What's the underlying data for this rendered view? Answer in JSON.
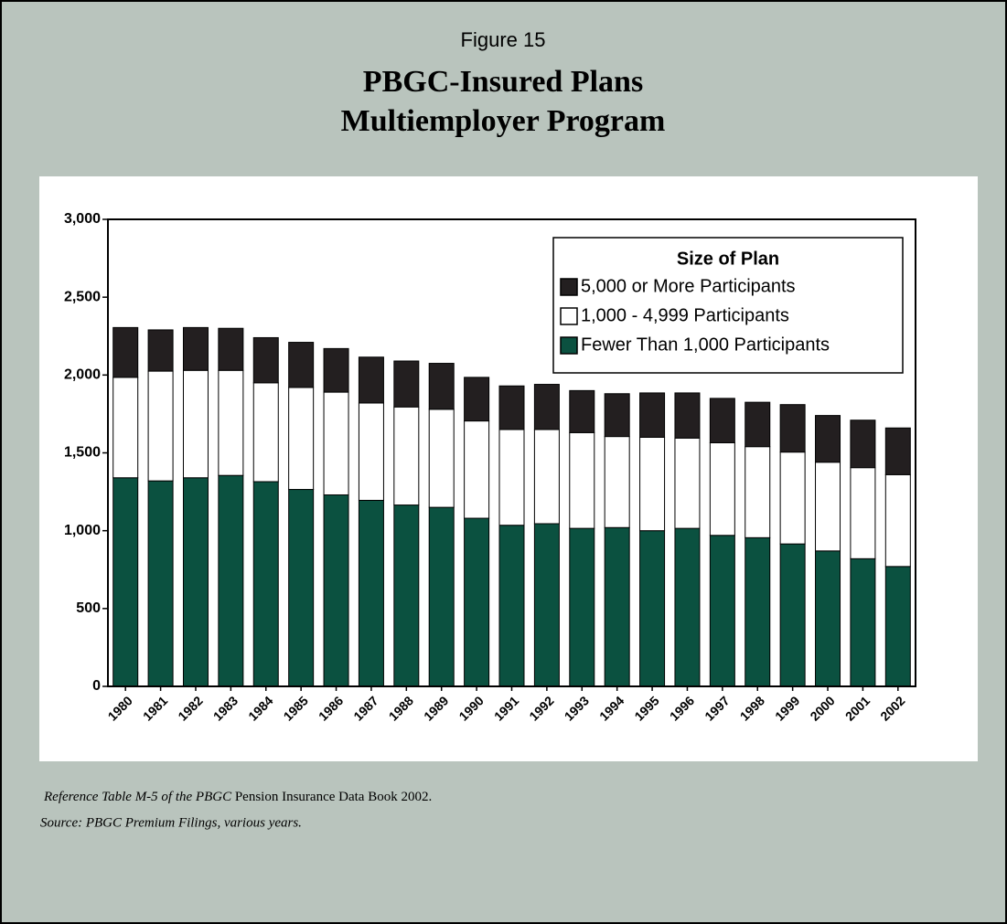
{
  "chart_data": {
    "type": "bar",
    "stacked": true,
    "figure_label": "Figure 15",
    "title": [
      "PBGC-Insured Plans",
      "Multiemployer Program"
    ],
    "legend_title": "Size of Plan",
    "legend": "upper right",
    "categories": [
      "1980",
      "1981",
      "1982",
      "1983",
      "1984",
      "1985",
      "1986",
      "1987",
      "1988",
      "1989",
      "1990",
      "1991",
      "1992",
      "1993",
      "1994",
      "1995",
      "1996",
      "1997",
      "1998",
      "1999",
      "2000",
      "2001",
      "2002"
    ],
    "series": [
      {
        "name": "Fewer Than 1,000 Participants",
        "color": "#0b5140",
        "values": [
          1340,
          1320,
          1340,
          1355,
          1315,
          1265,
          1230,
          1195,
          1165,
          1150,
          1080,
          1035,
          1045,
          1015,
          1020,
          1000,
          1015,
          970,
          955,
          915,
          870,
          820,
          770
        ]
      },
      {
        "name": "1,000 - 4,999 Participants",
        "color": "#ffffff",
        "values": [
          645,
          705,
          690,
          675,
          635,
          655,
          660,
          625,
          630,
          630,
          625,
          615,
          605,
          615,
          585,
          600,
          580,
          595,
          585,
          590,
          570,
          585,
          590
        ]
      },
      {
        "name": "5,000 or More Participants",
        "color": "#231f20",
        "values": [
          320,
          265,
          275,
          270,
          290,
          290,
          280,
          295,
          295,
          295,
          280,
          280,
          290,
          270,
          275,
          285,
          290,
          285,
          285,
          305,
          300,
          305,
          300
        ]
      }
    ],
    "ylim": [
      0,
      3000
    ],
    "yticks": [
      0,
      500,
      {
        "value": 1000,
        "label": "1,000"
      },
      {
        "value": 1500,
        "label": "1,500"
      },
      {
        "value": 2000,
        "label": "2,000"
      },
      {
        "value": 2500,
        "label": "2,500"
      },
      {
        "value": 3000,
        "label": "3,000"
      }
    ]
  },
  "notes": {
    "reference_italic": "Reference Table M-5 of the PBGC",
    "reference_plain": "Pension Insurance Data Book 2002.",
    "source": "Source: PBGC Premium Filings, various years."
  }
}
